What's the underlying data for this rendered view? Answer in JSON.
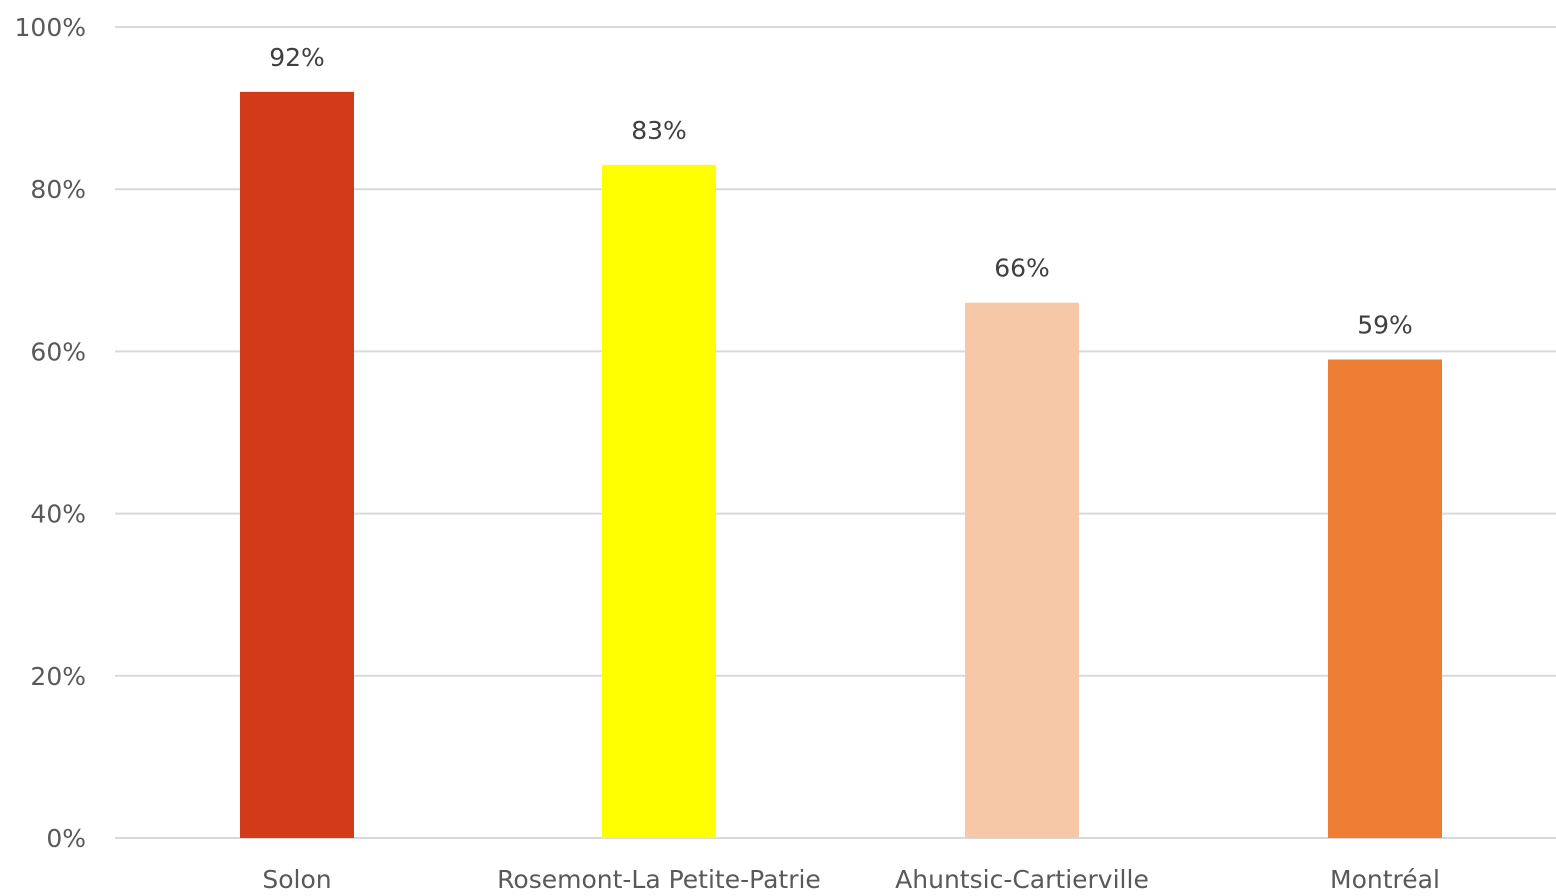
{
  "chart_data": {
    "type": "bar",
    "title": "",
    "xlabel": "",
    "ylabel": "",
    "categories": [
      "Solon",
      "Rosemont-La Petite-Patrie",
      "Ahuntsic-Cartierville",
      "Montréal"
    ],
    "values": [
      92,
      83,
      66,
      59
    ],
    "value_labels": [
      "92%",
      "83%",
      "66%",
      "59%"
    ],
    "bar_colors": [
      "#d33a17",
      "#ffff00",
      "#f7c8a8",
      "#ec7d33"
    ],
    "ylim": [
      0,
      100
    ],
    "y_ticks": [
      0,
      20,
      40,
      60,
      80,
      100
    ],
    "y_tick_labels": [
      "0%",
      "20%",
      "40%",
      "60%",
      "80%",
      "100%"
    ],
    "grid": true,
    "legend": "none"
  },
  "colors": {
    "gridline": "#d9d9d9",
    "tick_text": "#595959",
    "data_label_text": "#404040"
  }
}
